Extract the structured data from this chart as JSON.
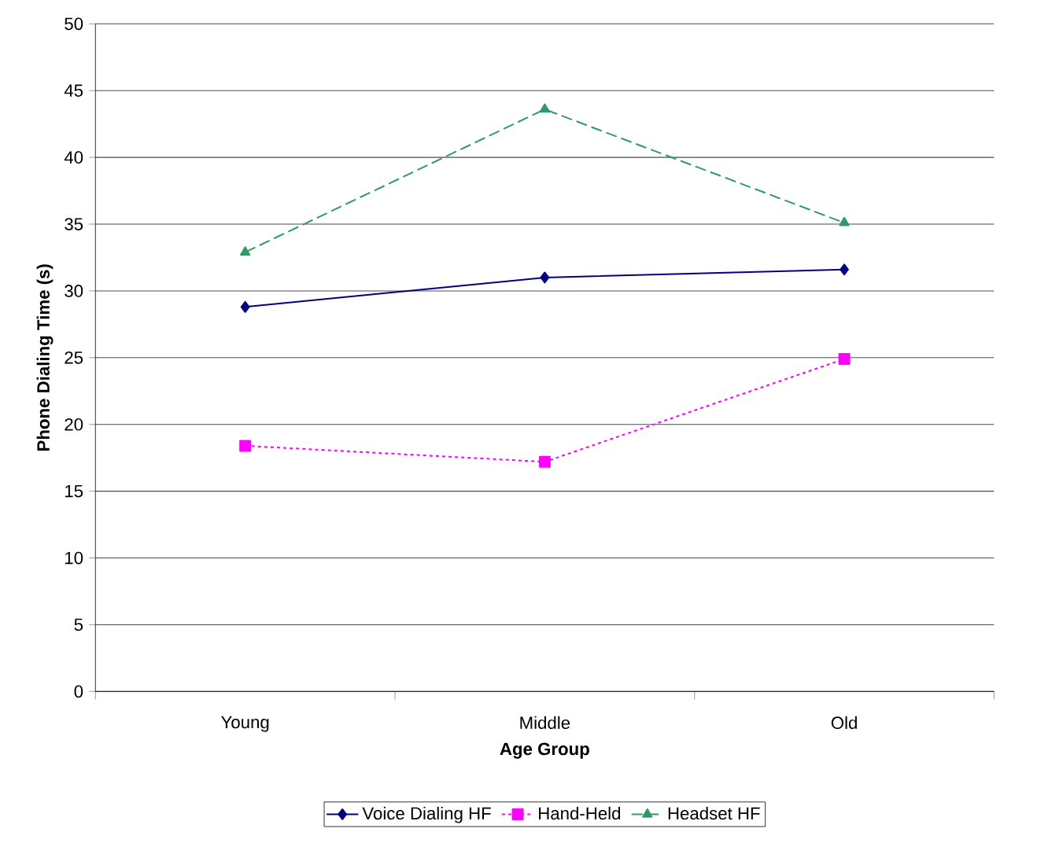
{
  "chart_data": {
    "type": "line",
    "xlabel": "Age Group",
    "ylabel": "Phone Dialing Time (s)",
    "categories": [
      "Young",
      "Middle",
      "Old"
    ],
    "series": [
      {
        "name": "Voice Dialing HF",
        "color": "#000080",
        "values": [
          28.8,
          31.0,
          31.6
        ],
        "marker": "diamond",
        "line_style": "solid"
      },
      {
        "name": "Hand-Held",
        "color": "#ff00ff",
        "values": [
          18.4,
          17.2,
          24.9
        ],
        "marker": "square",
        "line_style": "dotted"
      },
      {
        "name": "Headset HF",
        "color": "#339966",
        "values": [
          32.9,
          43.6,
          35.1
        ],
        "marker": "triangle",
        "line_style": "dashed"
      }
    ],
    "ylim": [
      0,
      50
    ],
    "yticks": [
      0,
      5,
      10,
      15,
      20,
      25,
      30,
      35,
      40,
      45,
      50
    ],
    "grid": "y",
    "legend": "bottom"
  }
}
